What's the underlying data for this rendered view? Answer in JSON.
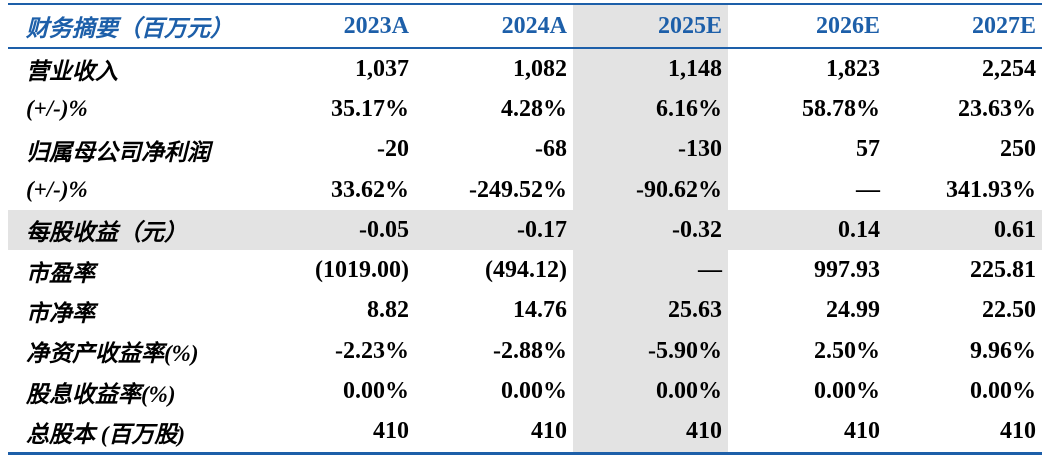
{
  "table": {
    "title_cell": "财务摘要（百万元）",
    "header": {
      "columns": [
        "2023A",
        "2024A",
        "2025E",
        "2026E",
        "2027E"
      ]
    },
    "highlight_column_index": 2,
    "rows": [
      {
        "label": "营业收入",
        "values": [
          "1,037",
          "1,082",
          "1,148",
          "1,823",
          "2,254"
        ]
      },
      {
        "label": "(+/-)%",
        "values": [
          "35.17%",
          "4.28%",
          "6.16%",
          "58.78%",
          "23.63%"
        ]
      },
      {
        "label": "归属母公司净利润",
        "values": [
          "-20",
          "-68",
          "-130",
          "57",
          "250"
        ]
      },
      {
        "label": "(+/-)%",
        "values": [
          "33.62%",
          "-249.52%",
          "-90.62%",
          "—",
          "341.93%"
        ]
      },
      {
        "label": "每股收益（元）",
        "values": [
          "-0.05",
          "-0.17",
          "-0.32",
          "0.14",
          "0.61"
        ],
        "highlight": true
      },
      {
        "label": "市盈率",
        "values": [
          "(1019.00)",
          "(494.12)",
          "—",
          "997.93",
          "225.81"
        ]
      },
      {
        "label": "市净率",
        "values": [
          "8.82",
          "14.76",
          "25.63",
          "24.99",
          "22.50"
        ]
      },
      {
        "label": "净资产收益率(%)",
        "values": [
          "-2.23%",
          "-2.88%",
          "-5.90%",
          "2.50%",
          "9.96%"
        ]
      },
      {
        "label": "股息收益率(%)",
        "values": [
          "0.00%",
          "0.00%",
          "0.00%",
          "0.00%",
          "0.00%"
        ]
      },
      {
        "label": "总股本 (百万股)",
        "values": [
          "410",
          "410",
          "410",
          "410",
          "410"
        ]
      }
    ],
    "colors": {
      "accent_blue": "#1d5fa9",
      "highlight_gray": "#e3e3e3"
    }
  }
}
